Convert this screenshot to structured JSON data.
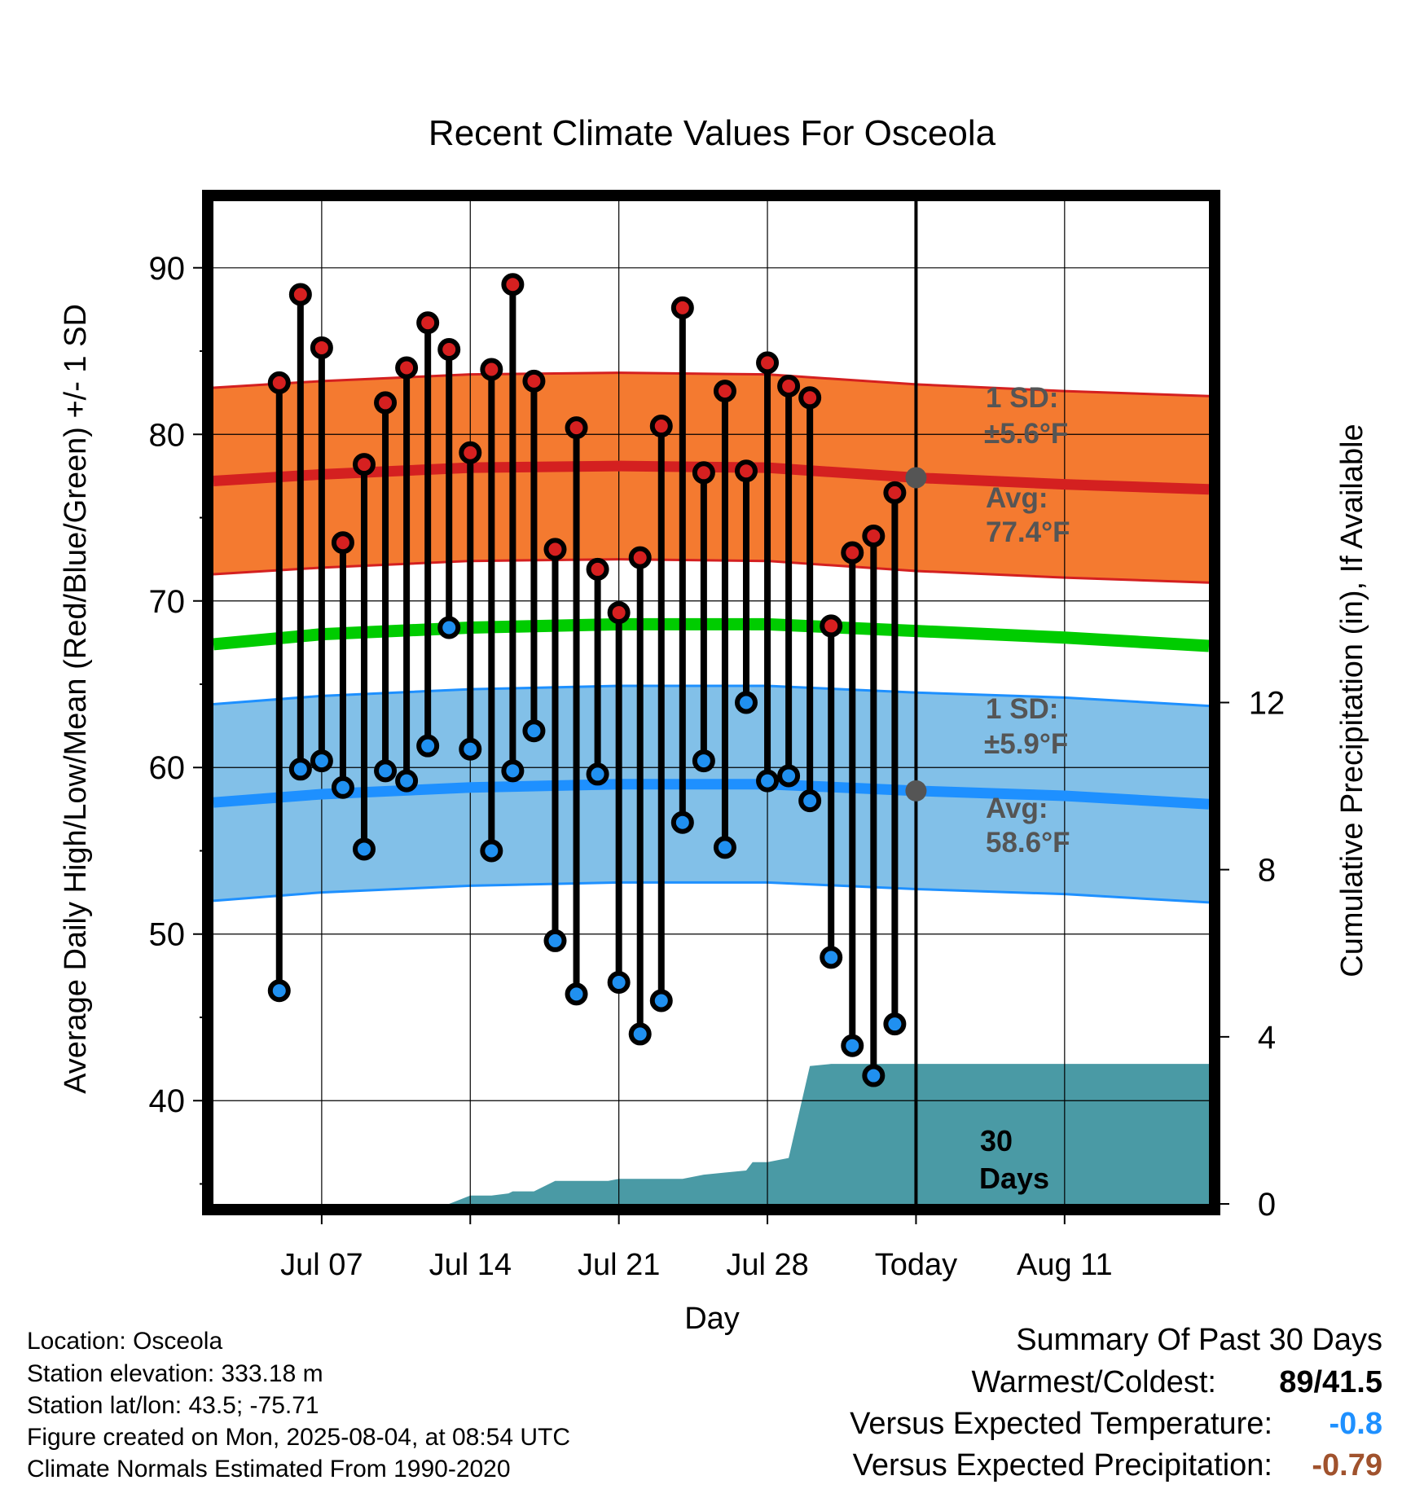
{
  "chart_data": {
    "type": "line",
    "title": "Recent Climate Values For Osceola",
    "xlabel": "Day",
    "ylabel": "Average Daily High/Low/Mean (Red/Blue/Green) +/- 1 SD",
    "y2label": "Cumulative Precipitation (in), If Available",
    "ylim": [
      33.8,
      94
    ],
    "y2lim": [
      0,
      24
    ],
    "xlim": [
      -33.1,
      13.8
    ],
    "x_ticks": [
      {
        "x": -28,
        "label": "Jul 07"
      },
      {
        "x": -21,
        "label": "Jul 14"
      },
      {
        "x": -14,
        "label": "Jul 21"
      },
      {
        "x": -7,
        "label": "Jul 28"
      },
      {
        "x": 0,
        "label": "Today"
      },
      {
        "x": 7,
        "label": "Aug 11"
      }
    ],
    "y_ticks": [
      40,
      50,
      60,
      70,
      80,
      90
    ],
    "y2_ticks": [
      0,
      4,
      8,
      12
    ],
    "grid": true,
    "x": [
      -30,
      -29,
      -28,
      -27,
      -26,
      -25,
      -24,
      -23,
      -22,
      -21,
      -20,
      -19,
      -18,
      -17,
      -16,
      -15,
      -14,
      -13,
      -12,
      -11,
      -10,
      -9,
      -8,
      -7,
      -6,
      -5,
      -4,
      -3,
      -2,
      -1
    ],
    "high": [
      83.1,
      88.4,
      85.2,
      73.5,
      78.2,
      81.9,
      84.0,
      86.7,
      85.1,
      78.9,
      83.9,
      89.0,
      83.2,
      73.1,
      80.4,
      71.9,
      69.3,
      72.6,
      80.5,
      87.6,
      77.7,
      82.6,
      77.8,
      84.3,
      82.9,
      82.2,
      68.5,
      72.9,
      73.9,
      76.5
    ],
    "low": [
      46.6,
      59.9,
      60.4,
      58.8,
      55.1,
      59.8,
      59.2,
      61.3,
      68.4,
      61.1,
      55.0,
      59.8,
      62.2,
      49.6,
      46.4,
      59.6,
      47.1,
      44.0,
      46.0,
      56.7,
      60.4,
      55.2,
      63.9,
      59.2,
      59.5,
      58.0,
      48.6,
      43.3,
      41.5,
      44.6
    ],
    "normal_high": {
      "x": [
        -33.1,
        -28,
        -21,
        -14,
        -7,
        0,
        7,
        13.8
      ],
      "avg": [
        77.2,
        77.6,
        78.0,
        78.1,
        78.0,
        77.4,
        77.0,
        76.7
      ],
      "sd": 5.6
    },
    "normal_low": {
      "x": [
        -33.1,
        -28,
        -21,
        -14,
        -7,
        0,
        7,
        13.8
      ],
      "avg": [
        57.9,
        58.4,
        58.8,
        59.0,
        59.0,
        58.6,
        58.3,
        57.8
      ],
      "sd": 5.9
    },
    "normal_mean": {
      "x": [
        -33.1,
        -28,
        -21,
        -14,
        -7,
        0,
        7,
        13.8
      ],
      "values": [
        67.4,
        68.0,
        68.4,
        68.6,
        68.6,
        68.2,
        67.8,
        67.3
      ]
    },
    "precip": {
      "x": [
        -33.1,
        -24.8,
        -24.0,
        -22.0,
        -21.0,
        -20.0,
        -19.2,
        -19.0,
        -18.0,
        -17.0,
        -16.0,
        -15.0,
        -14.5,
        -14.0,
        -11.0,
        -10.0,
        -9.0,
        -8.0,
        -7.7,
        -7.0,
        -6.0,
        -5.0,
        -4.0,
        -3.0,
        -2.0,
        -1.0,
        0.0,
        13.8
      ],
      "values": [
        0,
        0,
        0,
        0,
        0.2,
        0.2,
        0.25,
        0.3,
        0.3,
        0.55,
        0.55,
        0.55,
        0.55,
        0.6,
        0.6,
        0.7,
        0.75,
        0.8,
        1.0,
        1.0,
        1.1,
        3.3,
        3.35,
        3.35,
        3.35,
        3.35,
        3.35,
        3.35
      ]
    },
    "annotations": {
      "high_sd_label": "1 SD:",
      "high_sd_value": "±5.6°F",
      "high_avg_label": "Avg:",
      "high_avg_value": "77.4°F",
      "low_sd_label": "1 SD:",
      "low_sd_value": "±5.9°F",
      "low_avg_label": "Avg:",
      "low_avg_value": "58.6°F",
      "today_label_1": "30",
      "today_label_2": "Days"
    },
    "colors": {
      "high_band": "#f47a30",
      "high_line": "#d42020",
      "low_band": "#82c0e8",
      "low_line": "#1e90ff",
      "mean_line": "#00cc00",
      "precip": "#4a9aa5",
      "high_marker": "#d62020",
      "low_marker": "#2090f0"
    }
  },
  "info": {
    "location": "Location: Osceola",
    "elevation": "Station elevation: 333.18 m",
    "latlon": "Station lat/lon: 43.5; -75.71",
    "created": "Figure created on Mon, 2025-08-04, at 08:54 UTC",
    "normals": "Climate Normals Estimated From 1990-2020"
  },
  "summary": {
    "title": "Summary Of Past 30 Days",
    "warm_cold_label": "Warmest/Coldest:",
    "warm_cold_value": "89/41.5",
    "temp_label": "Versus Expected Temperature:",
    "temp_value": "-0.8",
    "temp_color": "#1e90ff",
    "precip_label": "Versus Expected Precipitation:",
    "precip_value": "-0.79",
    "precip_color": "#a0522d"
  }
}
